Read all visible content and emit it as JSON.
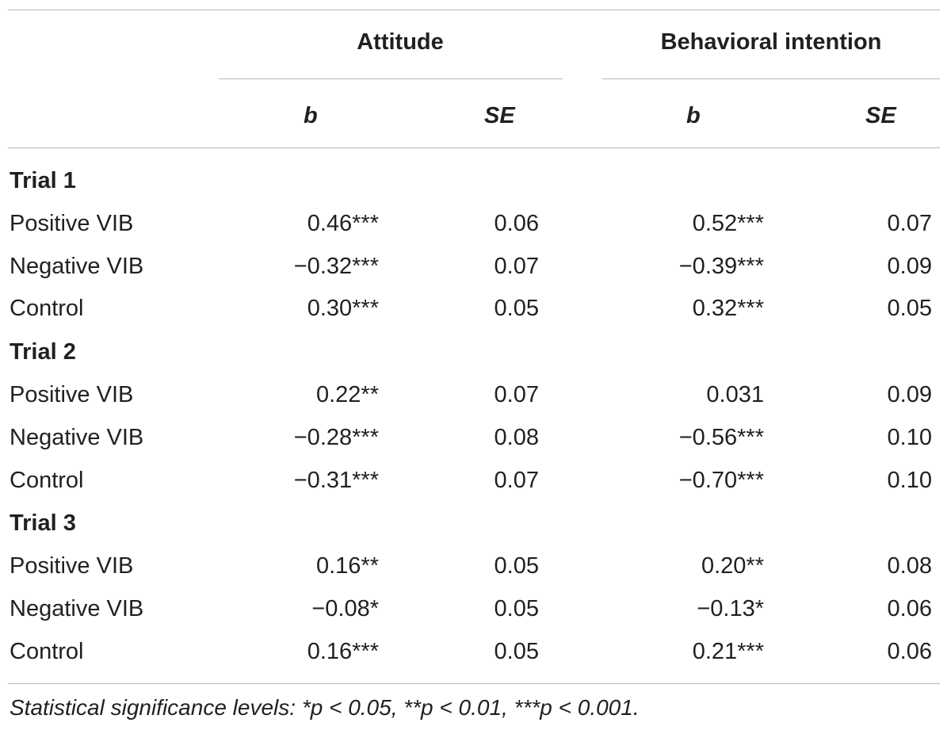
{
  "table": {
    "group_headers": {
      "attitude": "Attitude",
      "behavioral_intention": "Behavioral intention"
    },
    "sub_headers": {
      "att_b": "b",
      "att_se": "SE",
      "beh_b": "b",
      "beh_se": "SE"
    },
    "sections": [
      {
        "title": "Trial 1",
        "rows": [
          {
            "label": "Positive VIB",
            "att_b": "0.46***",
            "att_se": "0.06",
            "beh_b": "0.52***",
            "beh_se": "0.07"
          },
          {
            "label": "Negative VIB",
            "att_b": "−0.32***",
            "att_se": "0.07",
            "beh_b": "−0.39***",
            "beh_se": "0.09"
          },
          {
            "label": "Control",
            "att_b": "0.30***",
            "att_se": "0.05",
            "beh_b": "0.32***",
            "beh_se": "0.05"
          }
        ]
      },
      {
        "title": "Trial 2",
        "rows": [
          {
            "label": "Positive VIB",
            "att_b": "0.22**",
            "att_se": "0.07",
            "beh_b": "0.031",
            "beh_se": "0.09"
          },
          {
            "label": "Negative VIB",
            "att_b": "−0.28***",
            "att_se": "0.08",
            "beh_b": "−0.56***",
            "beh_se": "0.10"
          },
          {
            "label": "Control",
            "att_b": "−0.31***",
            "att_se": "0.07",
            "beh_b": "−0.70***",
            "beh_se": "0.10"
          }
        ]
      },
      {
        "title": "Trial 3",
        "rows": [
          {
            "label": "Positive VIB",
            "att_b": "0.16**",
            "att_se": "0.05",
            "beh_b": "0.20**",
            "beh_se": "0.08"
          },
          {
            "label": "Negative VIB",
            "att_b": "−0.08*",
            "att_se": "0.05",
            "beh_b": "−0.13*",
            "beh_se": "0.06"
          },
          {
            "label": "Control",
            "att_b": "0.16***",
            "att_se": "0.05",
            "beh_b": "0.21***",
            "beh_se": "0.06"
          }
        ]
      }
    ],
    "footnote": "Statistical significance levels: *p < 0.05, **p < 0.01, ***p < 0.001."
  }
}
